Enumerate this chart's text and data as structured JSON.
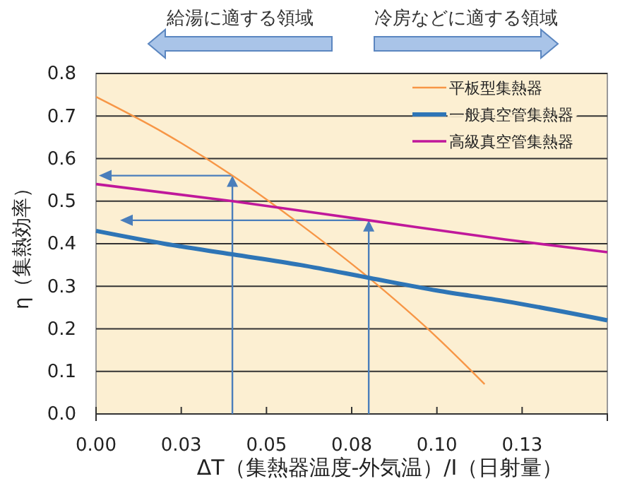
{
  "chart_data": {
    "type": "line",
    "xlabel": "ΔT（集熱器温度-外気温）/I（日射量）",
    "ylabel": "η（集熱効率）",
    "annotations": [
      "給湯に適する領域",
      "冷房などに適する領域"
    ],
    "xlim": [
      0,
      0.15
    ],
    "xticks": [
      {
        "value": 0,
        "label": "0.00"
      },
      {
        "value": 0.025,
        "label": "0.03"
      },
      {
        "value": 0.05,
        "label": "0.05"
      },
      {
        "value": 0.075,
        "label": "0.08"
      },
      {
        "value": 0.1,
        "label": "0.10"
      },
      {
        "value": 0.125,
        "label": "0.13"
      }
    ],
    "ylim": [
      0,
      0.8
    ],
    "yticks": [
      {
        "value": 0,
        "label": "0.0"
      },
      {
        "value": 0.1,
        "label": "0.1"
      },
      {
        "value": 0.2,
        "label": "0.2"
      },
      {
        "value": 0.3,
        "label": "0.3"
      },
      {
        "value": 0.4,
        "label": "0.4"
      },
      {
        "value": 0.5,
        "label": "0.5"
      },
      {
        "value": 0.6,
        "label": "0.6"
      },
      {
        "value": 0.7,
        "label": "0.7"
      },
      {
        "value": 0.8,
        "label": "0.8"
      }
    ],
    "grid": "y",
    "legend": "top right",
    "series": [
      {
        "name": "平板型集熱器",
        "color": "#f79646",
        "x": [
          0,
          0.02,
          0.04,
          0.06,
          0.08,
          0.1,
          0.114
        ],
        "values": [
          0.745,
          0.66,
          0.56,
          0.445,
          0.32,
          0.18,
          0.07
        ]
      },
      {
        "name": "一般真空管集熱器",
        "color": "#2e75b6",
        "x": [
          0,
          0.02,
          0.04,
          0.06,
          0.08,
          0.1,
          0.12,
          0.15
        ],
        "values": [
          0.43,
          0.4,
          0.375,
          0.35,
          0.32,
          0.29,
          0.265,
          0.22
        ]
      },
      {
        "name": "高級真空管集熱器",
        "color": "#c0189b",
        "x": [
          0,
          0.04,
          0.08,
          0.12,
          0.15
        ],
        "values": [
          0.54,
          0.5,
          0.455,
          0.41,
          0.38
        ]
      }
    ]
  }
}
